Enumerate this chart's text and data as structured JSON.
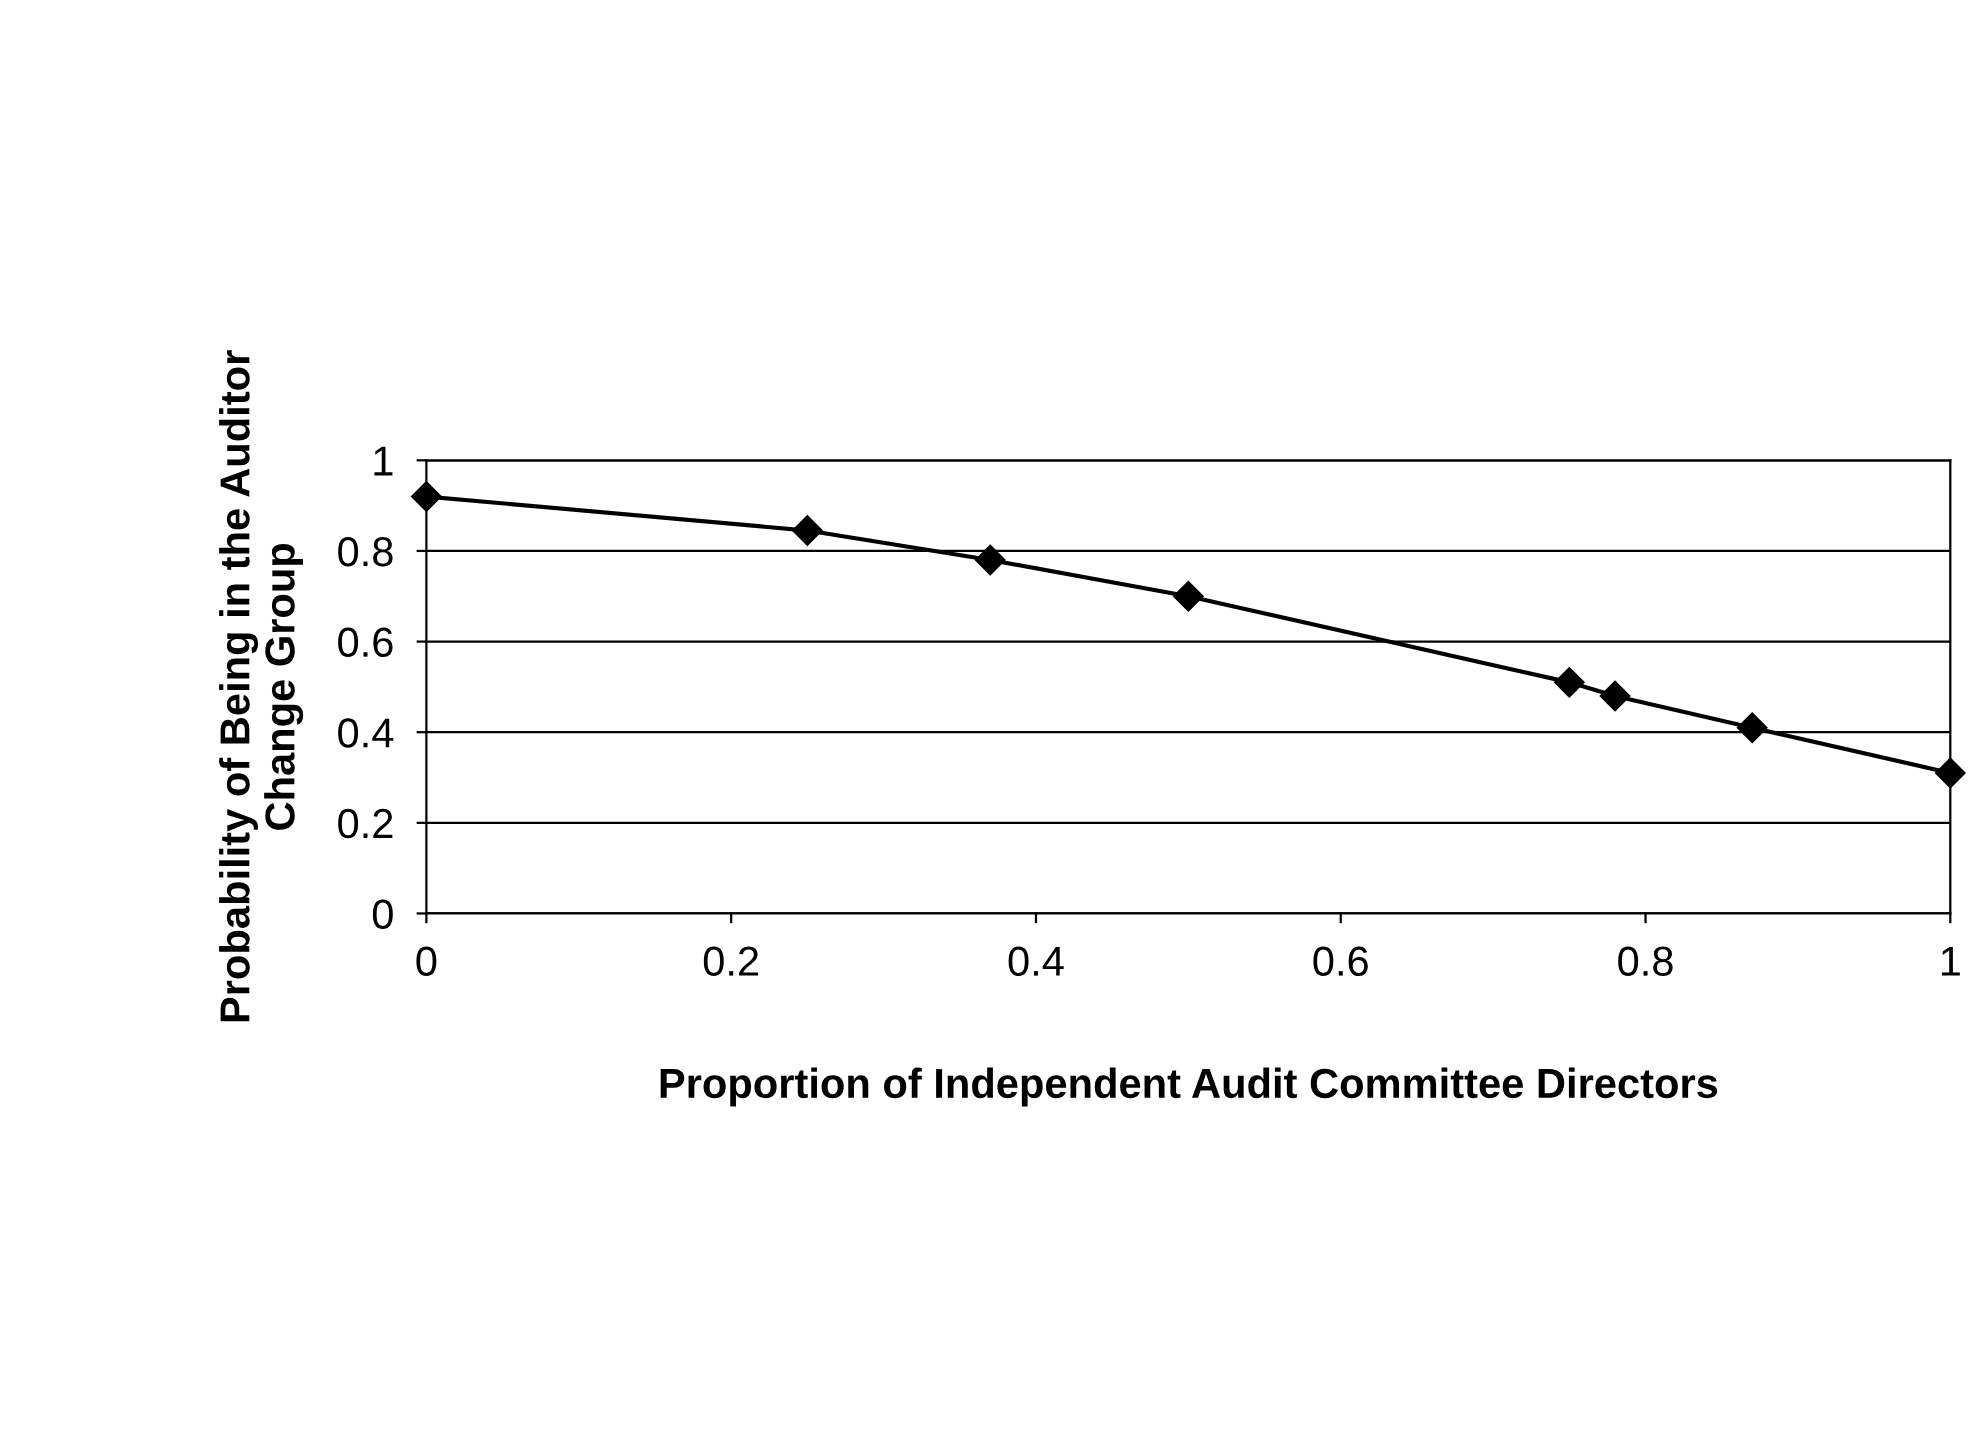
{
  "chart_data": {
    "type": "line",
    "xlabel": "Proportion of Independent Audit Committee Directors",
    "ylabel": "Probability of Being in the Auditor\nChange Group",
    "x": [
      0,
      0.25,
      0.37,
      0.5,
      0.75,
      0.78,
      0.87,
      1
    ],
    "series": [
      {
        "color": "#000000",
        "values": [
          0.92,
          0.845,
          0.78,
          0.7,
          0.51,
          0.48,
          0.41,
          0.31
        ]
      }
    ],
    "xlim": [
      0,
      1
    ],
    "ylim": [
      0,
      1
    ],
    "xticks": [
      0,
      0.2,
      0.4,
      0.6,
      0.8,
      1
    ],
    "yticks": [
      0,
      0.2,
      0.4,
      0.6,
      0.8,
      1
    ],
    "grid": "y",
    "marker": "diamond",
    "line_style": "solid",
    "legend": false
  }
}
